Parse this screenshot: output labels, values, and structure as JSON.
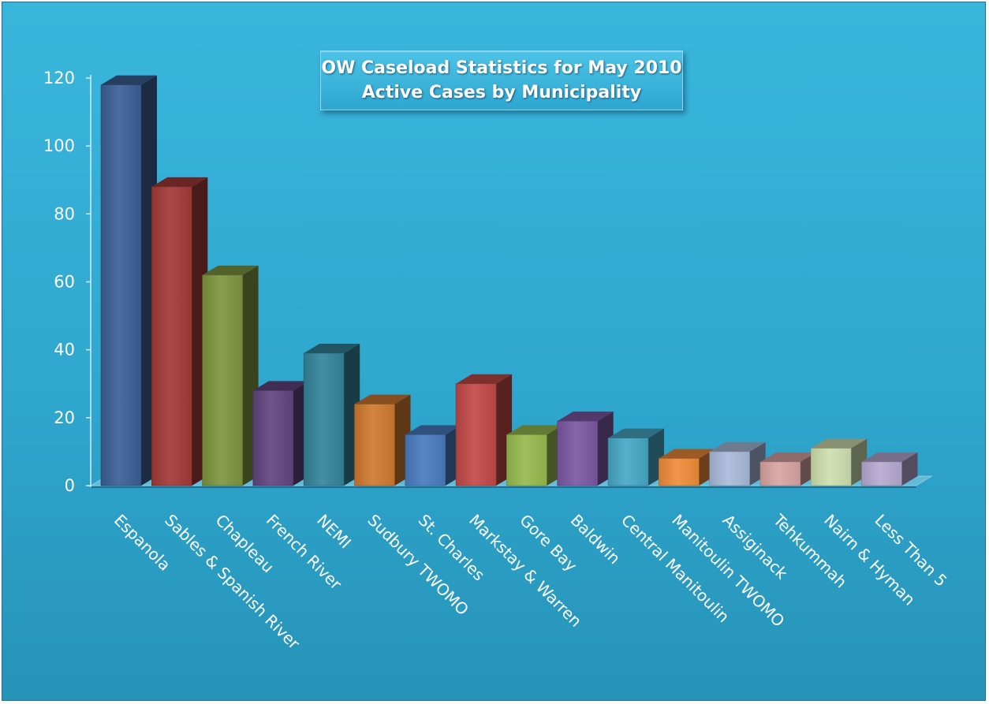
{
  "chart_data": {
    "type": "bar",
    "title": [
      "OW Caseload Statistics for May 2010",
      "Active Cases by Municipality"
    ],
    "xlabel": "",
    "ylabel": "",
    "ylim": [
      0,
      120
    ],
    "yticks": [
      "0",
      "20",
      "40",
      "60",
      "80",
      "100",
      "120"
    ],
    "grid": false,
    "style": "3d-columns",
    "categories": [
      "Espanola",
      "Sables & Spanish River",
      "Chapleau",
      "French River",
      "NEMI",
      "Sudbury TWOMO",
      "St. Charles",
      "Markstay & Warren",
      "Gore Bay",
      "Baldwin",
      "Central Manitoulin",
      "Manitoulin TWOMO",
      "Assiginack",
      "Tehkummah",
      "Nairn & Hyman",
      "Less Than 5"
    ],
    "values": [
      118,
      88,
      62,
      28,
      39,
      24,
      15,
      30,
      15,
      19,
      14,
      8,
      10,
      7,
      11,
      7
    ],
    "colors": [
      "#3b5f97",
      "#a33a38",
      "#7f9640",
      "#624580",
      "#34859a",
      "#d07a30",
      "#4a7cc0",
      "#c24a48",
      "#98bb50",
      "#7c58a4",
      "#48a8c6",
      "#f08c3a",
      "#a9bbdb",
      "#d9a5a4",
      "#cfdfb0",
      "#b7aad2"
    ]
  }
}
